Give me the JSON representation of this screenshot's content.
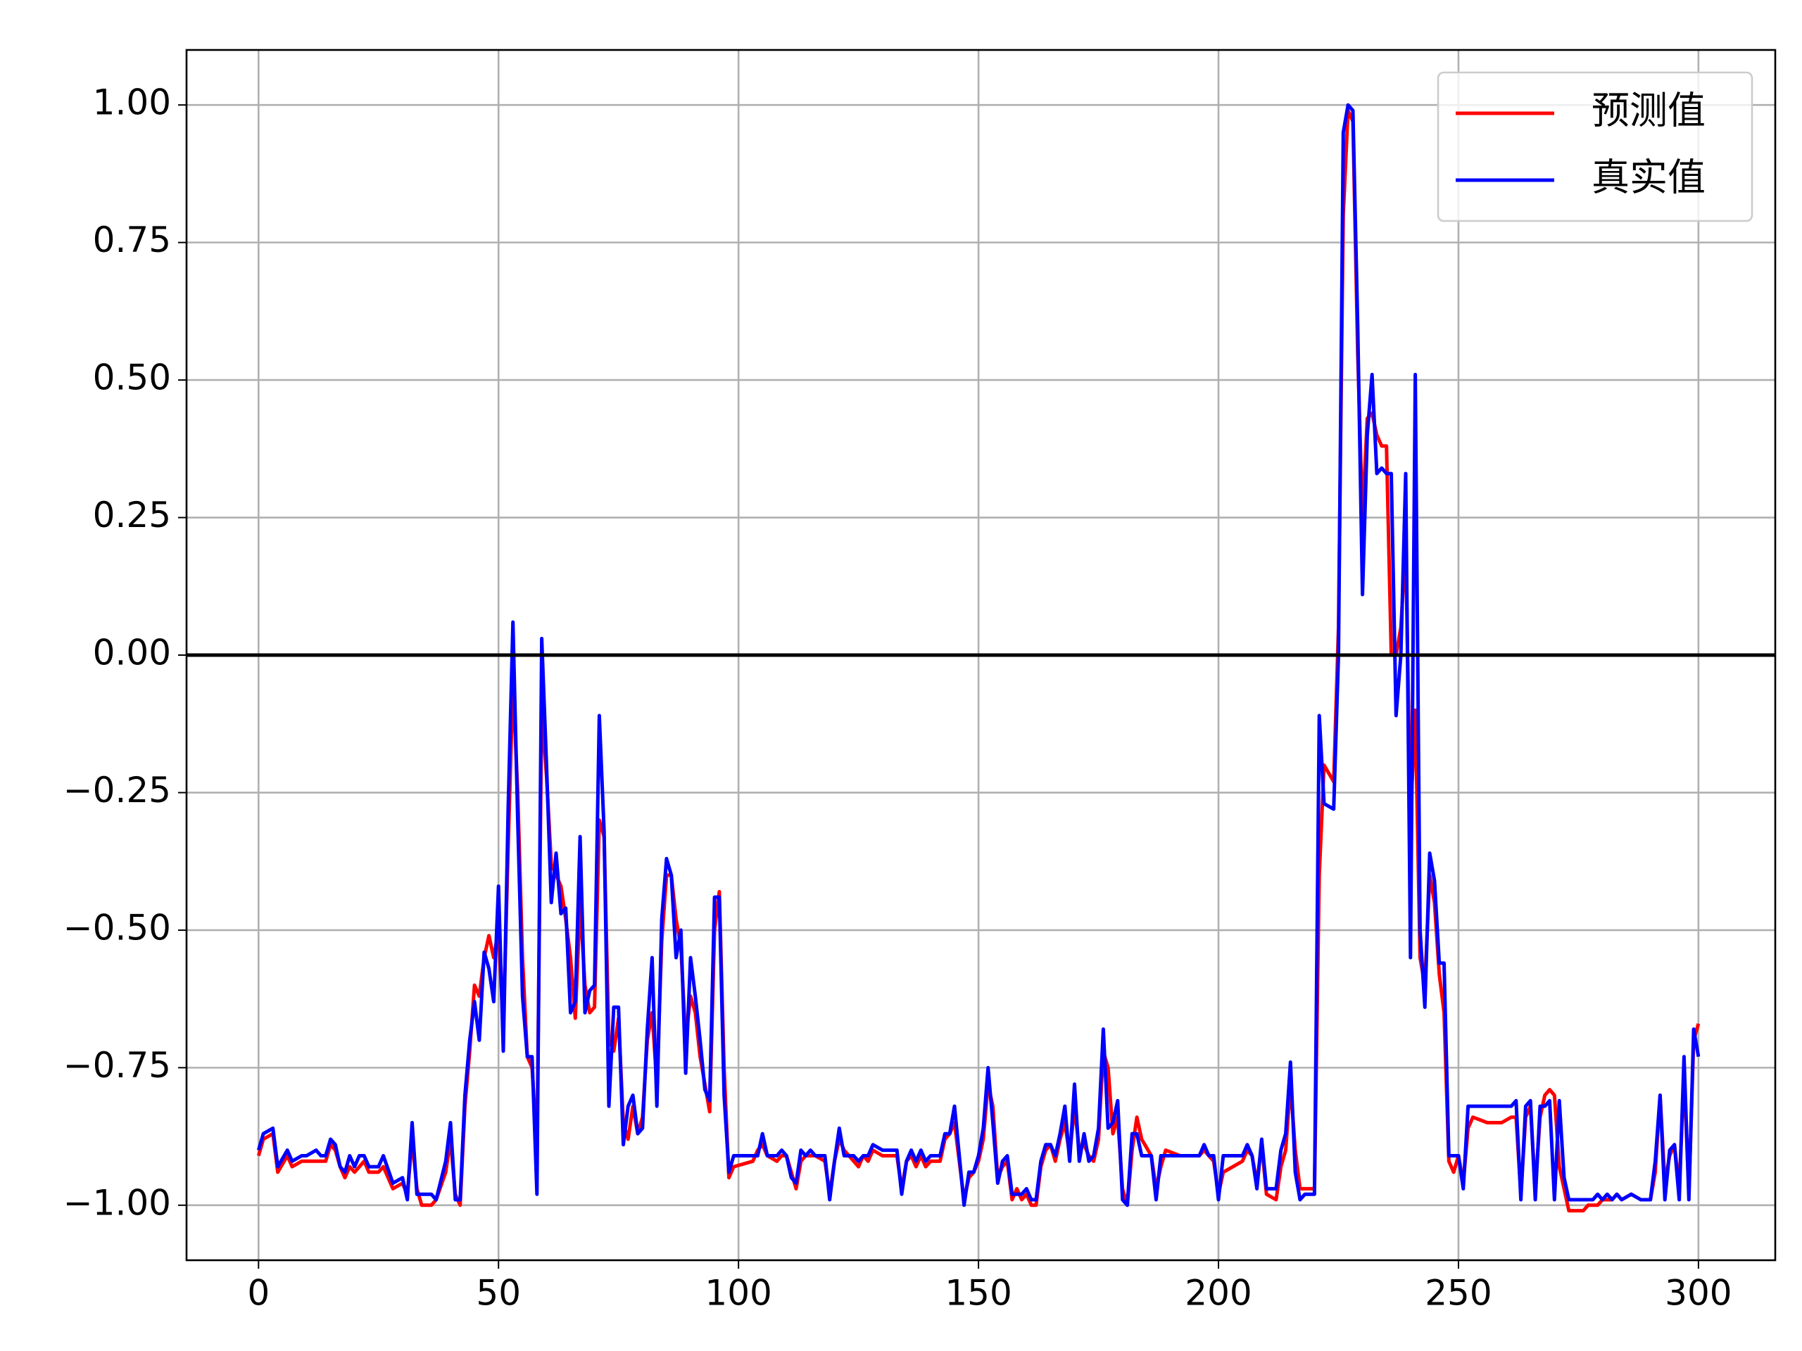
{
  "chart_data": {
    "type": "line",
    "x": [
      0,
      1,
      3,
      4,
      6,
      7,
      9,
      10,
      12,
      13,
      14,
      15,
      16,
      17,
      18,
      19,
      20,
      21,
      22,
      23,
      25,
      26,
      28,
      30,
      31,
      32,
      33,
      34,
      36,
      37,
      39,
      40,
      41,
      42,
      43,
      44,
      45,
      46,
      47,
      48,
      49,
      50,
      51,
      52,
      53,
      54,
      55,
      56,
      57,
      58,
      59,
      60,
      61,
      62,
      63,
      64,
      65,
      66,
      67,
      68,
      69,
      70,
      71,
      72,
      73,
      74,
      75,
      76,
      77,
      78,
      79,
      80,
      81,
      82,
      83,
      84,
      85,
      86,
      87,
      88,
      89,
      90,
      91,
      92,
      93,
      94,
      95,
      96,
      97,
      98,
      99,
      103,
      104,
      105,
      106,
      108,
      109,
      110,
      111,
      112,
      113,
      114,
      115,
      116,
      118,
      119,
      120,
      121,
      122,
      124,
      125,
      126,
      127,
      128,
      130,
      133,
      134,
      135,
      136,
      137,
      138,
      139,
      140,
      142,
      143,
      144,
      145,
      146,
      147,
      148,
      149,
      150,
      151,
      152,
      153,
      154,
      155,
      156,
      157,
      158,
      159,
      160,
      161,
      162,
      163,
      164,
      165,
      166,
      167,
      168,
      169,
      170,
      171,
      172,
      173,
      174,
      175,
      176,
      177,
      178,
      179,
      180,
      181,
      182,
      183,
      184,
      186,
      187,
      188,
      189,
      192,
      196,
      197,
      198,
      199,
      200,
      201,
      205,
      206,
      207,
      208,
      209,
      210,
      212,
      213,
      214,
      215,
      216,
      217,
      218,
      220,
      221,
      222,
      224,
      225,
      226,
      227,
      228,
      229,
      230,
      231,
      232,
      233,
      234,
      235,
      236,
      237,
      238,
      239,
      240,
      241,
      242,
      243,
      244,
      245,
      246,
      247,
      248,
      249,
      250,
      251,
      252,
      253,
      256,
      259,
      261,
      262,
      263,
      264,
      265,
      266,
      267,
      268,
      269,
      270,
      271,
      272,
      273,
      276,
      277,
      278,
      279,
      280,
      281,
      282,
      283,
      284,
      286,
      288,
      290,
      291,
      292,
      293,
      294,
      295,
      296,
      297,
      298,
      299,
      300
    ],
    "series": [
      {
        "name": "预测值",
        "color": "#ff0000",
        "values": [
          -0.91,
          -0.88,
          -0.87,
          -0.94,
          -0.91,
          -0.93,
          -0.92,
          -0.92,
          -0.92,
          -0.92,
          -0.92,
          -0.89,
          -0.9,
          -0.93,
          -0.95,
          -0.93,
          -0.94,
          -0.93,
          -0.92,
          -0.94,
          -0.94,
          -0.93,
          -0.97,
          -0.96,
          -0.98,
          -0.88,
          -0.97,
          -1.0,
          -1.0,
          -0.99,
          -0.94,
          -0.88,
          -0.98,
          -1.0,
          -0.82,
          -0.72,
          -0.6,
          -0.62,
          -0.55,
          -0.51,
          -0.55,
          -0.5,
          -0.68,
          -0.35,
          -0.05,
          -0.25,
          -0.55,
          -0.73,
          -0.75,
          -0.9,
          -0.1,
          -0.22,
          -0.38,
          -0.4,
          -0.42,
          -0.48,
          -0.55,
          -0.66,
          -0.45,
          -0.6,
          -0.65,
          -0.64,
          -0.3,
          -0.33,
          -0.7,
          -0.72,
          -0.66,
          -0.85,
          -0.88,
          -0.82,
          -0.87,
          -0.84,
          -0.7,
          -0.65,
          -0.78,
          -0.52,
          -0.4,
          -0.4,
          -0.48,
          -0.53,
          -0.7,
          -0.62,
          -0.65,
          -0.73,
          -0.78,
          -0.83,
          -0.5,
          -0.43,
          -0.75,
          -0.95,
          -0.93,
          -0.92,
          -0.9,
          -0.89,
          -0.91,
          -0.92,
          -0.91,
          -0.91,
          -0.94,
          -0.97,
          -0.92,
          -0.91,
          -0.91,
          -0.91,
          -0.92,
          -0.98,
          -0.92,
          -0.88,
          -0.9,
          -0.92,
          -0.93,
          -0.91,
          -0.92,
          -0.9,
          -0.91,
          -0.91,
          -0.97,
          -0.92,
          -0.91,
          -0.93,
          -0.91,
          -0.93,
          -0.92,
          -0.92,
          -0.88,
          -0.87,
          -0.85,
          -0.92,
          -0.99,
          -0.95,
          -0.94,
          -0.92,
          -0.88,
          -0.78,
          -0.82,
          -0.95,
          -0.93,
          -0.92,
          -0.99,
          -0.97,
          -0.99,
          -0.98,
          -1.0,
          -1.0,
          -0.93,
          -0.9,
          -0.89,
          -0.92,
          -0.88,
          -0.85,
          -0.91,
          -0.82,
          -0.9,
          -0.89,
          -0.91,
          -0.92,
          -0.88,
          -0.72,
          -0.75,
          -0.87,
          -0.84,
          -0.97,
          -1.0,
          -0.9,
          -0.84,
          -0.88,
          -0.91,
          -0.97,
          -0.93,
          -0.9,
          -0.91,
          -0.91,
          -0.9,
          -0.91,
          -0.92,
          -0.98,
          -0.94,
          -0.92,
          -0.9,
          -0.91,
          -0.96,
          -0.89,
          -0.98,
          -0.99,
          -0.93,
          -0.9,
          -0.78,
          -0.9,
          -0.97,
          -0.97,
          -0.97,
          -0.4,
          -0.2,
          -0.23,
          0.05,
          0.8,
          0.99,
          0.97,
          0.55,
          0.25,
          0.43,
          0.44,
          0.4,
          0.38,
          0.38,
          0.0,
          0.0,
          0.05,
          0.2,
          -0.3,
          -0.1,
          -0.55,
          -0.6,
          -0.4,
          -0.45,
          -0.58,
          -0.65,
          -0.92,
          -0.94,
          -0.91,
          -0.96,
          -0.86,
          -0.84,
          -0.85,
          -0.85,
          -0.84,
          -0.84,
          -0.98,
          -0.84,
          -0.82,
          -0.97,
          -0.84,
          -0.8,
          -0.79,
          -0.8,
          -0.93,
          -0.97,
          -1.01,
          -1.01,
          -1.0,
          -1.0,
          -1.0,
          -0.99,
          -0.99,
          -0.99,
          -0.98,
          -0.99,
          -0.98,
          -0.99,
          -0.99,
          -0.94,
          -0.8,
          -0.96,
          -0.91,
          -0.89,
          -0.97,
          -0.76,
          -0.98,
          -0.7,
          -0.67
        ]
      },
      {
        "name": "真实值",
        "color": "#0000ff",
        "values": [
          -0.9,
          -0.87,
          -0.86,
          -0.93,
          -0.9,
          -0.92,
          -0.91,
          -0.91,
          -0.9,
          -0.91,
          -0.91,
          -0.88,
          -0.89,
          -0.93,
          -0.94,
          -0.91,
          -0.93,
          -0.91,
          -0.91,
          -0.93,
          -0.93,
          -0.91,
          -0.96,
          -0.95,
          -0.99,
          -0.85,
          -0.98,
          -0.98,
          -0.98,
          -0.99,
          -0.92,
          -0.85,
          -0.99,
          -0.99,
          -0.8,
          -0.7,
          -0.63,
          -0.7,
          -0.54,
          -0.57,
          -0.63,
          -0.42,
          -0.72,
          -0.28,
          0.06,
          -0.3,
          -0.62,
          -0.73,
          -0.73,
          -0.98,
          0.03,
          -0.2,
          -0.45,
          -0.36,
          -0.47,
          -0.46,
          -0.65,
          -0.63,
          -0.33,
          -0.65,
          -0.61,
          -0.6,
          -0.11,
          -0.32,
          -0.82,
          -0.64,
          -0.64,
          -0.89,
          -0.82,
          -0.8,
          -0.87,
          -0.86,
          -0.68,
          -0.55,
          -0.82,
          -0.48,
          -0.37,
          -0.4,
          -0.55,
          -0.5,
          -0.76,
          -0.55,
          -0.62,
          -0.7,
          -0.79,
          -0.81,
          -0.44,
          -0.44,
          -0.8,
          -0.94,
          -0.91,
          -0.91,
          -0.91,
          -0.87,
          -0.91,
          -0.91,
          -0.9,
          -0.91,
          -0.95,
          -0.96,
          -0.9,
          -0.91,
          -0.9,
          -0.91,
          -0.91,
          -0.99,
          -0.92,
          -0.86,
          -0.91,
          -0.91,
          -0.92,
          -0.91,
          -0.91,
          -0.89,
          -0.9,
          -0.9,
          -0.98,
          -0.92,
          -0.9,
          -0.92,
          -0.9,
          -0.92,
          -0.91,
          -0.91,
          -0.87,
          -0.87,
          -0.82,
          -0.91,
          -1.0,
          -0.94,
          -0.94,
          -0.91,
          -0.86,
          -0.75,
          -0.85,
          -0.96,
          -0.92,
          -0.91,
          -0.98,
          -0.98,
          -0.98,
          -0.97,
          -0.99,
          -0.99,
          -0.92,
          -0.89,
          -0.89,
          -0.91,
          -0.87,
          -0.82,
          -0.92,
          -0.78,
          -0.92,
          -0.87,
          -0.92,
          -0.91,
          -0.86,
          -0.68,
          -0.86,
          -0.85,
          -0.81,
          -0.99,
          -1.0,
          -0.87,
          -0.87,
          -0.91,
          -0.91,
          -0.99,
          -0.91,
          -0.91,
          -0.91,
          -0.91,
          -0.89,
          -0.91,
          -0.91,
          -0.99,
          -0.91,
          -0.91,
          -0.89,
          -0.91,
          -0.97,
          -0.88,
          -0.97,
          -0.97,
          -0.9,
          -0.87,
          -0.74,
          -0.94,
          -0.99,
          -0.98,
          -0.98,
          -0.11,
          -0.27,
          -0.28,
          0.0,
          0.95,
          1.0,
          0.99,
          0.6,
          0.11,
          0.4,
          0.51,
          0.33,
          0.34,
          0.33,
          0.33,
          -0.11,
          0.0,
          0.33,
          -0.55,
          0.51,
          -0.5,
          -0.64,
          -0.36,
          -0.41,
          -0.56,
          -0.56,
          -0.91,
          -0.91,
          -0.91,
          -0.97,
          -0.82,
          -0.82,
          -0.82,
          -0.82,
          -0.82,
          -0.81,
          -0.99,
          -0.82,
          -0.81,
          -0.99,
          -0.82,
          -0.82,
          -0.81,
          -0.99,
          -0.81,
          -0.95,
          -0.99,
          -0.99,
          -0.99,
          -0.99,
          -0.98,
          -0.99,
          -0.98,
          -0.99,
          -0.98,
          -0.99,
          -0.98,
          -0.99,
          -0.99,
          -0.92,
          -0.8,
          -0.99,
          -0.9,
          -0.89,
          -0.99,
          -0.73,
          -0.99,
          -0.68,
          -0.73
        ]
      }
    ],
    "xlim": [
      -15,
      316
    ],
    "ylim": [
      -1.1,
      1.1
    ],
    "xticks": [
      0,
      50,
      100,
      150,
      200,
      250,
      300
    ],
    "yticks": [
      {
        "value": -1,
        "label": "−1.00"
      },
      {
        "value": -0.75,
        "label": "−0.75"
      },
      {
        "value": -0.5,
        "label": "−0.50"
      },
      {
        "value": -0.25,
        "label": "−0.25"
      },
      {
        "value": 0,
        "label": "0.00"
      },
      {
        "value": 0.25,
        "label": "0.25"
      },
      {
        "value": 0.5,
        "label": "0.50"
      },
      {
        "value": 0.75,
        "label": "0.75"
      },
      {
        "value": 1,
        "label": "1.00"
      }
    ],
    "grid": true,
    "hline": 0,
    "legend": "upper right"
  }
}
